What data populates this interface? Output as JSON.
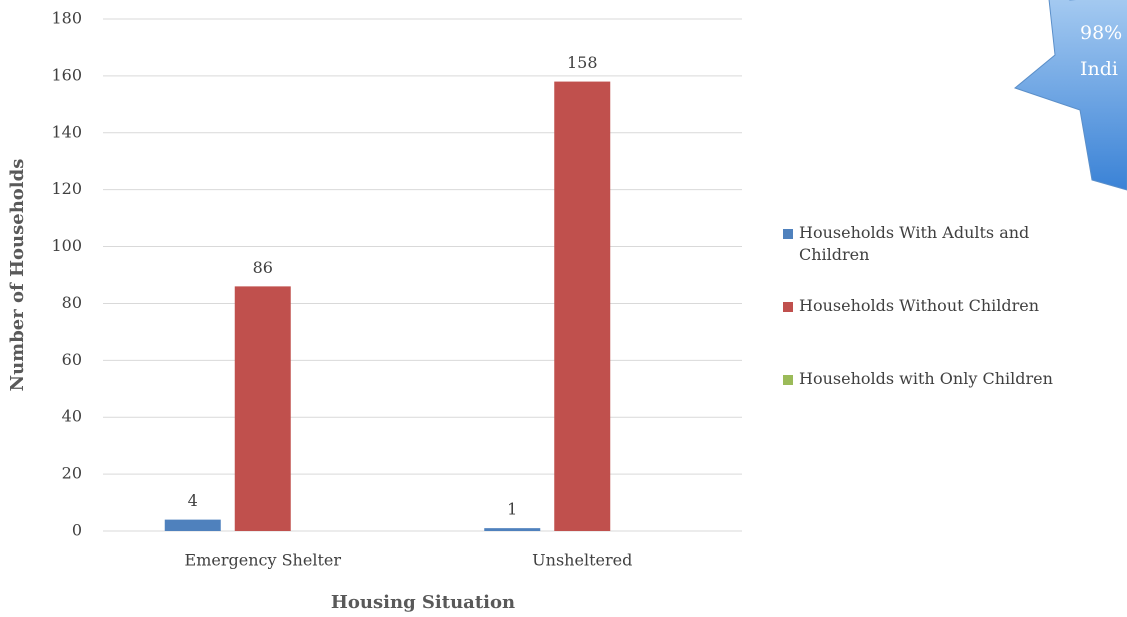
{
  "chart_data": {
    "type": "bar",
    "x_label": "Housing Situation",
    "y_label": "Number of Households",
    "categories": [
      "Emergency Shelter",
      "Unsheltered"
    ],
    "series": [
      {
        "name": "Households With Adults and Children",
        "color": "#4f81bd",
        "values": [
          4,
          1
        ]
      },
      {
        "name": "Households Without Children",
        "color": "#c0504d",
        "values": [
          86,
          158
        ]
      },
      {
        "name": "Households with Only Children",
        "color": "#9bbb59",
        "values": [
          null,
          null
        ]
      }
    ],
    "ylim": [
      0,
      180
    ],
    "yticks": [
      0,
      20,
      40,
      60,
      80,
      100,
      120,
      140,
      160,
      180
    ],
    "grid": true,
    "legend": "right",
    "annotations": [
      "98%",
      "Indi"
    ]
  }
}
